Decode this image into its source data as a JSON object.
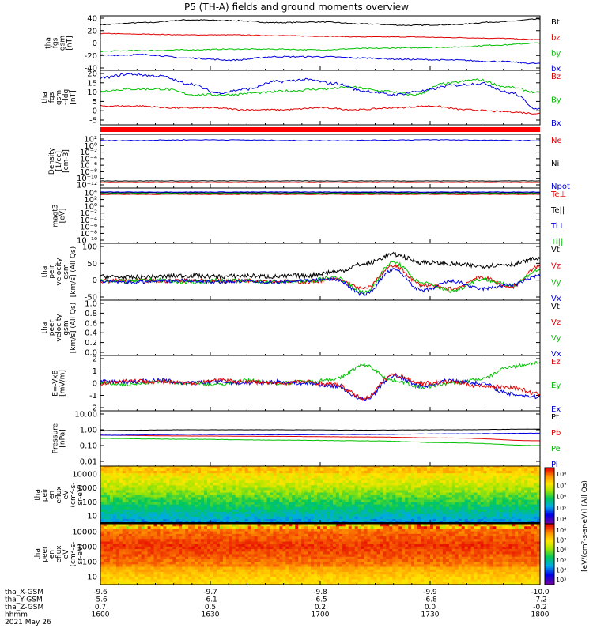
{
  "title": "P5 (TH-A) fields and ground moments overview",
  "date_label": "2021 May 26",
  "panels": [
    {
      "id": "fgs",
      "ylabel": [
        "tha",
        "fgs",
        "gsm",
        "[nT]"
      ],
      "yticks": [
        "40",
        "20",
        "0",
        "-20",
        "-40"
      ],
      "yrange": [
        -40,
        40
      ],
      "legend": [
        {
          "text": "Bt",
          "color": "#000000"
        },
        {
          "text": "bz",
          "color": "#e00000"
        },
        {
          "text": "by",
          "color": "#00c000"
        },
        {
          "text": "bx",
          "color": "#0000e0"
        }
      ]
    },
    {
      "id": "fgl",
      "ylabel": [
        "tha",
        "fgs",
        "gsm",
        "~ldg",
        "[nT]"
      ],
      "yticks": [
        "20",
        "15",
        "10",
        "5",
        "0",
        "-5"
      ],
      "yrange": [
        -8,
        21
      ],
      "legend": [
        {
          "text": "Bz",
          "color": "#e00000"
        },
        {
          "text": "By",
          "color": "#00c000"
        },
        {
          "text": "Bx",
          "color": "#0000e0"
        }
      ]
    },
    {
      "id": "density",
      "ylabel": [
        "Density",
        "[1/cc]",
        "[cm-3]"
      ],
      "yticks": [
        "10²",
        "10⁰",
        "10⁻²",
        "10⁻⁴",
        "10⁻⁶",
        "10⁻⁸",
        "10⁻¹⁰",
        "10⁻¹²"
      ],
      "legend": [
        {
          "text": "Ne",
          "color": "#e00000"
        },
        {
          "text": "Ni",
          "color": "#000000"
        },
        {
          "text": "Npot",
          "color": "#0000e0"
        }
      ]
    },
    {
      "id": "temp",
      "ylabel": [
        "magt3",
        "[eV]"
      ],
      "yticks": [
        "10⁴",
        "10²",
        "10⁰",
        "10⁻²",
        "10⁻⁴",
        "10⁻⁶",
        "10⁻⁸",
        "10⁻¹⁰"
      ],
      "legend": [
        {
          "text": "Te⊥",
          "color": "#e00000"
        },
        {
          "text": "Te||",
          "color": "#000000"
        },
        {
          "text": "Ti⊥",
          "color": "#0000e0"
        },
        {
          "text": "Ti||",
          "color": "#00c000"
        }
      ]
    },
    {
      "id": "peirvel",
      "ylabel": [
        "tha",
        "peir",
        "velocity",
        "gsm",
        "[km/s] (All Qs)"
      ],
      "yticks": [
        "100",
        "50",
        "0",
        "-50"
      ],
      "yrange": [
        -50,
        100
      ],
      "legend": [
        {
          "text": "Vt",
          "color": "#000000"
        },
        {
          "text": "Vz",
          "color": "#e00000"
        },
        {
          "text": "Vy",
          "color": "#00c000"
        },
        {
          "text": "Vx",
          "color": "#0000e0"
        }
      ]
    },
    {
      "id": "peervel",
      "ylabel": [
        "tha",
        "peer",
        "velocity",
        "gsm",
        "[km/s] (All Qs)"
      ],
      "yticks": [
        "1.0",
        "0.8",
        "0.6",
        "0.4",
        "0.2",
        "0.0"
      ],
      "yrange": [
        0,
        1
      ],
      "legend": [
        {
          "text": "Vt",
          "color": "#000000"
        },
        {
          "text": "Vz",
          "color": "#e00000"
        },
        {
          "text": "Vy",
          "color": "#00c000"
        },
        {
          "text": "Vx",
          "color": "#0000e0"
        }
      ]
    },
    {
      "id": "efield",
      "ylabel": [
        "E=-VxB",
        "[mV/m]"
      ],
      "yticks": [
        "2",
        "1",
        "0",
        "-1",
        "-2"
      ],
      "yrange": [
        -2,
        2
      ],
      "legend": [
        {
          "text": "Ez",
          "color": "#e00000"
        },
        {
          "text": "Ey",
          "color": "#00c000"
        },
        {
          "text": "Ex",
          "color": "#0000e0"
        }
      ]
    },
    {
      "id": "pressure",
      "ylabel": [
        "Pressure",
        "[nPa]"
      ],
      "yticks": [
        "10.00",
        "1.00",
        "0.10",
        "0.01"
      ],
      "legend": [
        {
          "text": "Pt",
          "color": "#000000"
        },
        {
          "text": "Pb",
          "color": "#e00000"
        },
        {
          "text": "Pe",
          "color": "#00c000"
        },
        {
          "text": "Pi",
          "color": "#0000e0"
        }
      ]
    },
    {
      "id": "peirspec",
      "ylabel": [
        "tha",
        "peir",
        "en",
        "eflux",
        "eV",
        "(cm²-s-",
        "sr-eV)"
      ],
      "yticks": [
        "10000",
        "1000",
        "100",
        "10"
      ]
    },
    {
      "id": "peerspec",
      "ylabel": [
        "tha",
        "peer",
        "en",
        "eflux",
        "eV",
        "(cm²-s-",
        "sr-eV)"
      ],
      "yticks": [
        "10000",
        "1000",
        "100",
        "10"
      ]
    }
  ],
  "colorbar": {
    "label": "[eV/(cm²-s-sr-eV)] (All Qs)",
    "upper_ticks": [
      "10⁸",
      "10⁷",
      "10⁶",
      "10⁵",
      "10⁴"
    ],
    "lower_ticks": [
      "10⁸",
      "10⁷",
      "10⁶",
      "10⁵",
      "10⁴",
      "10³"
    ]
  },
  "xaxis": {
    "rows": [
      {
        "label": "tha_X-GSM",
        "values": [
          "-9.6",
          "-9.7",
          "-9.8",
          "-9.9",
          "-10.0"
        ]
      },
      {
        "label": "tha_Y-GSM",
        "values": [
          "-5.6",
          "-6.1",
          "-6.5",
          "-6.8",
          "-7.2"
        ]
      },
      {
        "label": "tha_Z-GSM",
        "values": [
          "0.7",
          "0.5",
          "0.2",
          "0.0",
          "-0.2"
        ]
      },
      {
        "label": "hhmm",
        "values": [
          "1600",
          "1630",
          "1700",
          "1730",
          "1800"
        ]
      }
    ]
  },
  "chart_data": {
    "type": "line",
    "x_label": "hhmm",
    "x_range": [
      "1600",
      "1800"
    ],
    "series_overview": [
      {
        "panel": "fgs",
        "name": "Bt",
        "values_approx": [
          27,
          33,
          30,
          26,
          35
        ]
      },
      {
        "panel": "fgs",
        "name": "bz",
        "values_approx": [
          14,
          12,
          10,
          8,
          5
        ]
      },
      {
        "panel": "fgs",
        "name": "by",
        "values_approx": [
          -12,
          -10,
          -8,
          -5,
          0
        ]
      },
      {
        "panel": "fgs",
        "name": "bx",
        "values_approx": [
          -18,
          -22,
          -20,
          -25,
          -30
        ]
      },
      {
        "panel": "fgl",
        "name": "Bz",
        "values_approx": [
          2,
          1,
          0,
          0,
          -2
        ]
      },
      {
        "panel": "fgl",
        "name": "By",
        "values_approx": [
          10,
          8,
          11,
          13,
          9
        ]
      },
      {
        "panel": "fgl",
        "name": "Bx",
        "values_approx": [
          17,
          9,
          15,
          8,
          12
        ]
      }
    ]
  }
}
